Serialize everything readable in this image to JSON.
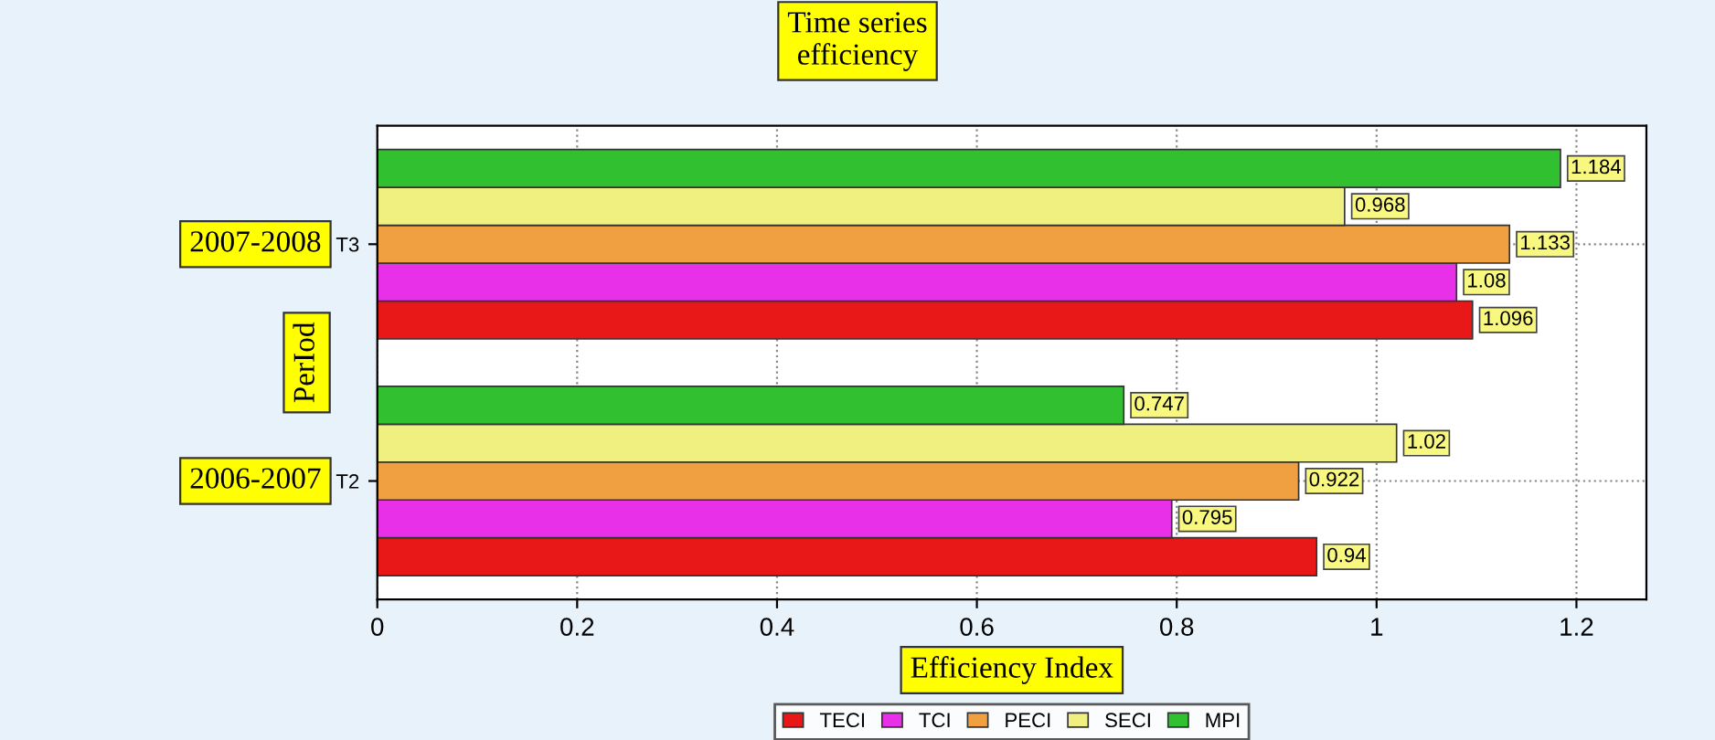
{
  "chart_data": {
    "type": "bar",
    "orientation": "horizontal",
    "title": "Time series\nefficiency",
    "xlabel": "Efficiency Index",
    "ylabel": "PerIod",
    "categories": [
      "T3",
      "T2"
    ],
    "series": [
      {
        "name": "TECI",
        "color": "#e81818",
        "values": [
          1.096,
          0.94
        ]
      },
      {
        "name": "TCI",
        "color": "#e830e8",
        "values": [
          1.08,
          0.795
        ]
      },
      {
        "name": "PECI",
        "color": "#f0a040",
        "values": [
          1.133,
          0.922
        ]
      },
      {
        "name": "SECI",
        "color": "#f0f080",
        "values": [
          0.968,
          1.02
        ]
      },
      {
        "name": "MPI",
        "color": "#30c030",
        "values": [
          1.184,
          0.747
        ]
      }
    ],
    "xlim": [
      0,
      1.27
    ],
    "xticks": [
      0,
      0.2,
      0.4,
      0.6,
      0.8,
      1,
      1.2
    ],
    "annotations": [
      "2007-2008",
      "2006-2007"
    ],
    "data_labels": true,
    "grid": true,
    "legend": "bottom"
  }
}
